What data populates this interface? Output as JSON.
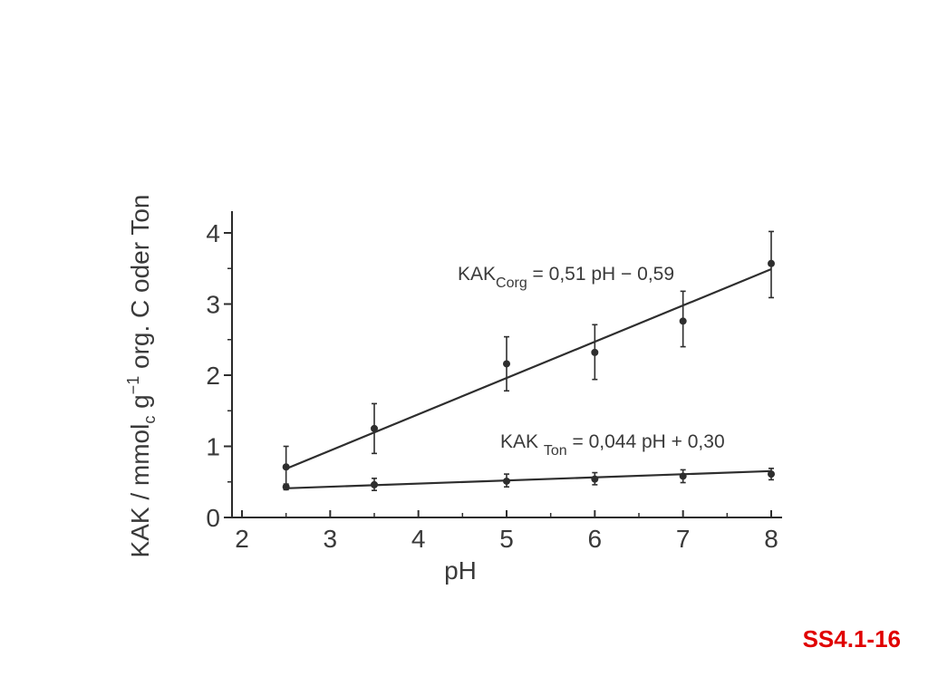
{
  "slide_label": "SS4.1-16",
  "chart_data": {
    "type": "scatter",
    "xlabel": "pH",
    "ylabel": {
      "part1": "KAK / mmol",
      "sub": "c",
      "part2": " g",
      "sup": "−1",
      "part3": " org. C oder Ton"
    },
    "xlim": [
      2,
      8
    ],
    "ylim": [
      0,
      4.2
    ],
    "x_ticks": [
      2,
      3,
      4,
      5,
      6,
      7,
      8
    ],
    "y_ticks": [
      0,
      1,
      2,
      3,
      4
    ],
    "grid": false,
    "series": [
      {
        "key": "corg",
        "points": [
          {
            "x": 2.5,
            "y": 0.71,
            "err_low": 0.4,
            "err_high": 1.0
          },
          {
            "x": 3.5,
            "y": 1.25,
            "err_low": 0.9,
            "err_high": 1.6
          },
          {
            "x": 5,
            "y": 2.16,
            "err_low": 1.78,
            "err_high": 2.54
          },
          {
            "x": 6,
            "y": 2.32,
            "err_low": 1.94,
            "err_high": 2.71
          },
          {
            "x": 7,
            "y": 2.76,
            "err_low": 2.4,
            "err_high": 3.18
          },
          {
            "x": 8,
            "y": 3.57,
            "err_low": 3.09,
            "err_high": 4.02
          }
        ],
        "fit": {
          "slope": 0.51,
          "intercept": -0.59,
          "x_range": [
            2.5,
            8
          ]
        },
        "equation": {
          "pre": "KAK",
          "sub": "Corg",
          "post": " = 0,51 pH − 0,59"
        }
      },
      {
        "key": "ton",
        "points": [
          {
            "x": 2.5,
            "y": 0.43,
            "err_low": 0.39,
            "err_high": 0.47
          },
          {
            "x": 3.5,
            "y": 0.46,
            "err_low": 0.38,
            "err_high": 0.55
          },
          {
            "x": 5,
            "y": 0.51,
            "err_low": 0.43,
            "err_high": 0.61
          },
          {
            "x": 6,
            "y": 0.54,
            "err_low": 0.46,
            "err_high": 0.63
          },
          {
            "x": 7,
            "y": 0.58,
            "err_low": 0.49,
            "err_high": 0.67
          },
          {
            "x": 8,
            "y": 0.61,
            "err_low": 0.53,
            "err_high": 0.69
          }
        ],
        "fit": {
          "slope": 0.044,
          "intercept": 0.3,
          "x_range": [
            2.5,
            8
          ]
        },
        "equation": {
          "pre": "KAK ",
          "sub": "Ton",
          "post": " = 0,044 pH + 0,30"
        }
      }
    ]
  }
}
